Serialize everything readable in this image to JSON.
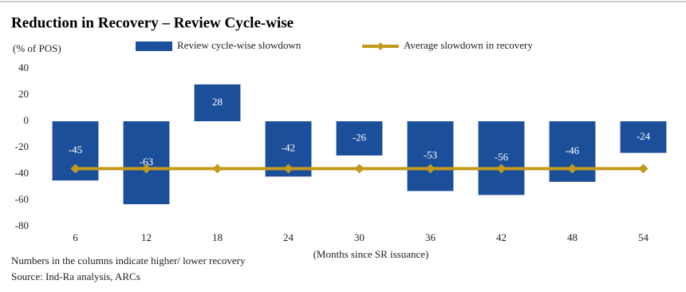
{
  "chart_data": {
    "type": "bar",
    "title": "Reduction in Recovery – Review Cycle-wise",
    "y_label": "(% of POS)",
    "x_label": "(Months since SR issuance)",
    "categories": [
      "6",
      "12",
      "18",
      "24",
      "30",
      "36",
      "42",
      "48",
      "54"
    ],
    "series": [
      {
        "name": "Review cycle-wise slowdown",
        "type": "bar",
        "color": "#1c4f9a",
        "values": [
          -45,
          -63,
          28,
          -42,
          -26,
          -53,
          -56,
          -46,
          -24
        ]
      },
      {
        "name": "Average slowdown in recovery",
        "type": "line",
        "color": "#c49a1c",
        "values": [
          -36,
          -36,
          -36,
          -36,
          -36,
          -36,
          -36,
          -36,
          -36
        ]
      }
    ],
    "ylim": [
      -80,
      40
    ],
    "yticks": [
      -80,
      -60,
      -40,
      -20,
      0,
      20,
      40
    ],
    "footnotes": [
      "Numbers in the columns indicate higher/ lower recovery",
      "Source: Ind-Ra analysis, ARCs"
    ]
  }
}
